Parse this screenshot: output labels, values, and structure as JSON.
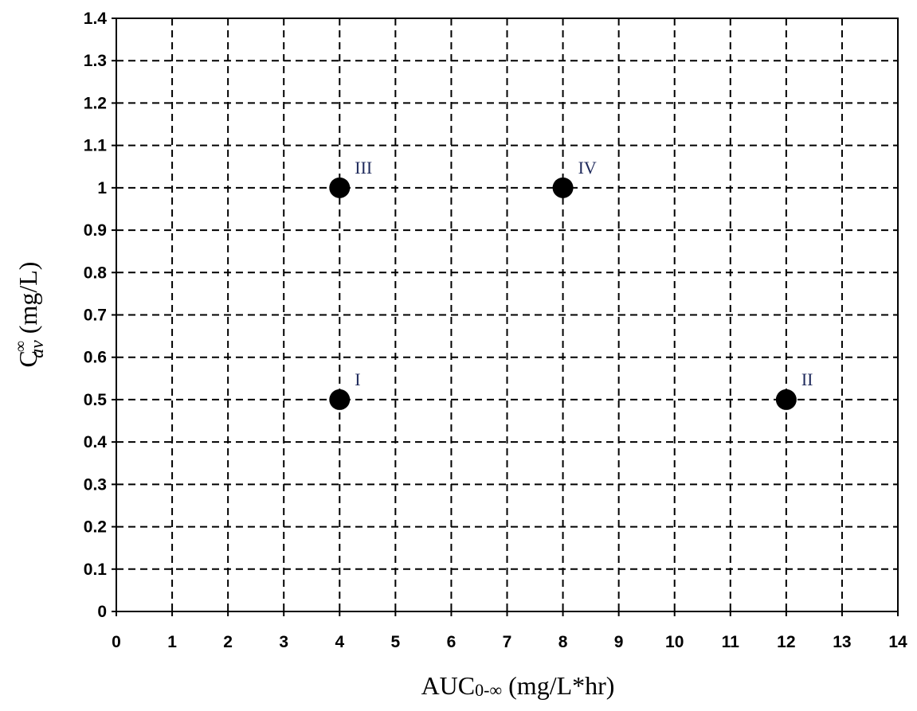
{
  "chart_data": {
    "type": "scatter",
    "x": [
      4,
      12,
      4,
      8
    ],
    "values": [
      0.5,
      0.5,
      1,
      1
    ],
    "point_labels": [
      "I",
      "II",
      "III",
      "IV"
    ],
    "color": "#000000",
    "xlim": [
      0,
      14
    ],
    "xticks": [
      0,
      1,
      2,
      3,
      4,
      5,
      6,
      7,
      8,
      9,
      10,
      11,
      12,
      13,
      14
    ],
    "ylim": [
      0,
      1.4
    ],
    "yticks": [
      0,
      0.1,
      0.2,
      0.3,
      0.4,
      0.5,
      0.6,
      0.7,
      0.8,
      0.9,
      1,
      1.1,
      1.2,
      1.3,
      1.4
    ],
    "grid": true,
    "xlabel": {
      "base": "AUC",
      "sub": "0-∞",
      "unit": " (mg/L*hr)"
    },
    "ylabel": {
      "base": "C",
      "sup": "∞",
      "sub": "av",
      "unit": " (mg/L)"
    }
  }
}
